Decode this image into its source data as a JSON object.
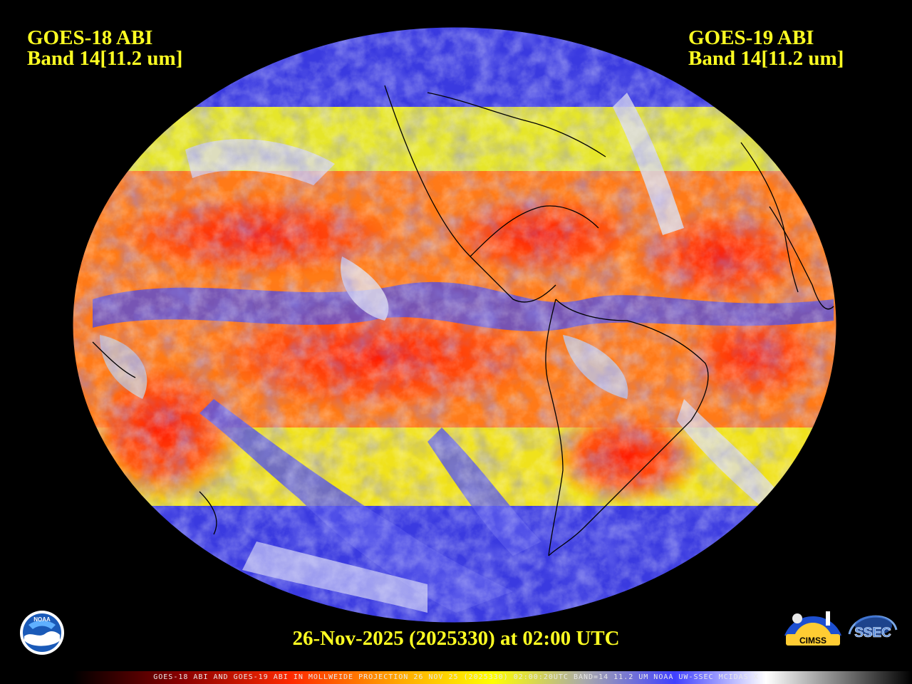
{
  "title_left": {
    "line1": "GOES-18 ABI",
    "line2": "Band 14[11.2 um]"
  },
  "title_right": {
    "line1": "GOES-19 ABI",
    "line2": "Band 14[11.2 um]"
  },
  "date_line": "26-Nov-2025 (2025330) at 02:00 UTC",
  "footer": "GOES-18 ABI AND GOES-19 ABI IN MOLLWEIDE PROJECTION 26 NOV 25 (2025330) 02:00:20UTC BAND=14 11.2 UM NOAA UW-SSEC MCIDAS-X",
  "logos": {
    "noaa": "NOAA",
    "cimss": "CIMSS",
    "ssec": "SSEC"
  },
  "colors": {
    "text": "#ffff22",
    "warm": "#ff4a10",
    "mid": "#ffee00",
    "cool": "#3a3ae0",
    "cold": "#e8e8e8"
  }
}
